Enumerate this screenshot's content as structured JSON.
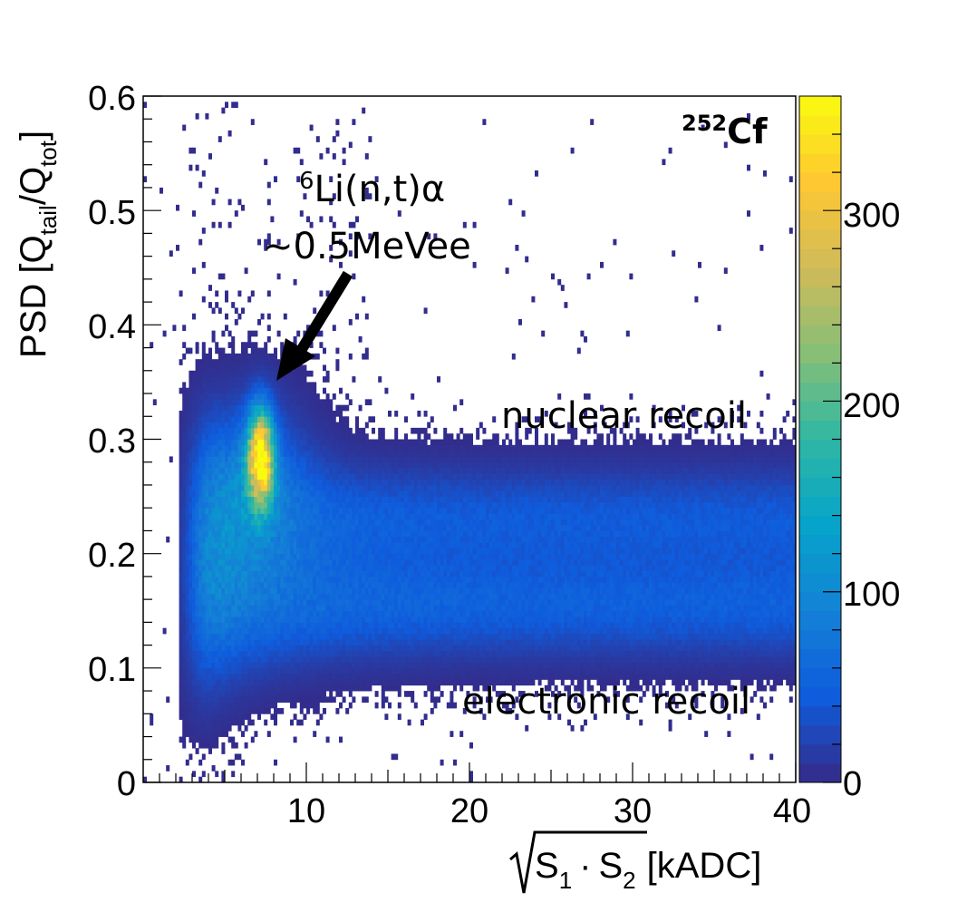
{
  "chart_data": {
    "type": "heatmap",
    "source_label_sup": "252",
    "source_label": "Cf",
    "x_axis": {
      "title_prefix": "S",
      "title_sub1": "1",
      "title_dot": "·",
      "title_s2": "S",
      "title_sub2": "2",
      "title_unit": "[kADC]",
      "range": [
        0,
        40
      ],
      "ticks": [
        10,
        20,
        30,
        40
      ],
      "tick_labels": [
        "10",
        "20",
        "30",
        "40"
      ]
    },
    "y_axis": {
      "title_main": "PSD [Q",
      "title_sub_tail": "tail",
      "title_mid": "/Q",
      "title_sub_tot": "tot",
      "title_end": "]",
      "range": [
        0,
        0.6
      ],
      "ticks": [
        0,
        0.1,
        0.2,
        0.3,
        0.4,
        0.5,
        0.6
      ],
      "tick_labels": [
        "0",
        "0.1",
        "0.2",
        "0.3",
        "0.4",
        "0.5",
        "0.6"
      ]
    },
    "colorbar": {
      "range": [
        0,
        360
      ],
      "ticks": [
        0,
        100,
        200,
        300
      ],
      "tick_labels": [
        "0",
        "100",
        "200",
        "300"
      ],
      "colors": [
        "#352a87",
        "#0f5cdd",
        "#1481d6",
        "#06a4ca",
        "#2eb7a4",
        "#87bf77",
        "#d1bb59",
        "#fec832",
        "#f9fb0e"
      ]
    },
    "bands": [
      {
        "name": "electronic recoil",
        "psd_center": 0.155,
        "psd_width": 0.03
      },
      {
        "name": "nuclear recoil",
        "psd_center": 0.23,
        "psd_width": 0.03
      }
    ],
    "hotspot": {
      "x": 7.2,
      "psd": 0.285,
      "peak_count": 340
    },
    "annotations": {
      "peak_label_sup": "6",
      "peak_label_line1": "Li(n,t)α",
      "peak_label_line2": "~0.5MeVee",
      "nuclear_label": "nuclear recoil",
      "electronic_label": "electronic recoil"
    }
  }
}
